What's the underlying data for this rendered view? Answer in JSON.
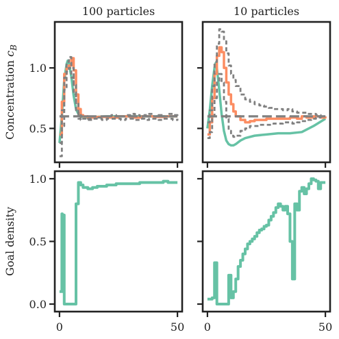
{
  "chart_data": [
    {
      "type": "line",
      "panel": "top-left",
      "title": "100 particles",
      "ylabel": "Concentration c_B",
      "xlim": [
        -2,
        52
      ],
      "ylim": [
        0.22,
        1.38
      ],
      "yticks": [
        0.5,
        1.0
      ],
      "ytick_labels": [
        "0.5",
        "1.0"
      ],
      "xticks": [
        0,
        50
      ],
      "xtick_labels": [],
      "series": [
        {
          "color": "#66c2a5",
          "style": "solid",
          "width": 3.5,
          "x": [
            0,
            1,
            2,
            3,
            3.5,
            4,
            5,
            6,
            7,
            8,
            9,
            10,
            12,
            15,
            20,
            30,
            40,
            50
          ],
          "y": [
            0.38,
            0.6,
            0.9,
            1.03,
            1.06,
            1.04,
            0.93,
            0.77,
            0.66,
            0.62,
            0.6,
            0.595,
            0.59,
            0.595,
            0.6,
            0.6,
            0.6,
            0.6
          ]
        },
        {
          "color": "#fc8d62",
          "style": "step",
          "width": 3.5,
          "x": [
            0,
            1,
            2,
            3,
            4,
            5,
            6,
            7,
            8,
            9,
            10,
            12,
            15,
            20,
            25,
            30,
            35,
            40,
            45,
            48,
            50
          ],
          "y": [
            0.45,
            0.72,
            0.95,
            1.0,
            1.02,
            1.08,
            0.98,
            0.78,
            0.66,
            0.61,
            0.6,
            0.59,
            0.595,
            0.59,
            0.6,
            0.59,
            0.6,
            0.595,
            0.6,
            0.6,
            0.6
          ]
        },
        {
          "color": "#808080",
          "style": "dashed-step",
          "width": 2.8,
          "x": [
            0,
            1,
            2,
            3,
            4,
            5,
            6,
            7,
            8,
            9,
            10,
            12,
            14,
            16,
            18,
            20,
            22,
            24,
            26,
            28,
            30,
            32,
            34,
            36,
            38,
            40,
            42,
            44,
            46,
            48,
            50
          ],
          "y": [
            0.38,
            0.65,
            0.92,
            1.05,
            1.09,
            1.0,
            0.86,
            0.72,
            0.63,
            0.59,
            0.6,
            0.58,
            0.6,
            0.59,
            0.6,
            0.6,
            0.61,
            0.6,
            0.6,
            0.61,
            0.62,
            0.61,
            0.6,
            0.61,
            0.62,
            0.6,
            0.61,
            0.6,
            0.62,
            0.61,
            0.6
          ]
        },
        {
          "color": "#808080",
          "style": "dashed-step",
          "width": 2.8,
          "x": [
            0,
            1,
            2,
            3,
            4,
            5,
            6,
            7,
            8,
            9,
            10,
            12,
            14,
            16,
            18,
            20,
            22,
            24,
            26,
            28,
            30,
            32,
            34,
            36,
            38,
            40,
            42,
            44,
            46,
            48,
            50
          ],
          "y": [
            0.27,
            0.52,
            0.82,
            0.97,
            1.0,
            0.92,
            0.78,
            0.65,
            0.58,
            0.57,
            0.58,
            0.57,
            0.58,
            0.58,
            0.57,
            0.58,
            0.58,
            0.58,
            0.57,
            0.58,
            0.58,
            0.57,
            0.58,
            0.57,
            0.58,
            0.58,
            0.57,
            0.58,
            0.58,
            0.57,
            0.58
          ]
        },
        {
          "color": "#808080",
          "style": "long-dashed",
          "width": 3.2,
          "x": [
            0,
            50
          ],
          "y": [
            0.6,
            0.6
          ]
        }
      ]
    },
    {
      "type": "line",
      "panel": "top-right",
      "title": "10 particles",
      "xlim": [
        -2,
        52
      ],
      "ylim": [
        0.22,
        1.38
      ],
      "yticks": [
        0.5,
        1.0
      ],
      "ytick_labels": [],
      "xticks": [
        0,
        50
      ],
      "xtick_labels": [],
      "series": [
        {
          "color": "#66c2a5",
          "style": "solid",
          "width": 3.5,
          "x": [
            0,
            1,
            2,
            3,
            3.5,
            4,
            5,
            6,
            7,
            8,
            9,
            10,
            11,
            12,
            14,
            16,
            20,
            25,
            30,
            35,
            40,
            45,
            50
          ],
          "y": [
            0.5,
            0.65,
            0.85,
            1.0,
            1.04,
            1.0,
            0.82,
            0.62,
            0.48,
            0.4,
            0.37,
            0.36,
            0.36,
            0.37,
            0.4,
            0.42,
            0.44,
            0.45,
            0.46,
            0.46,
            0.47,
            0.52,
            0.58
          ]
        },
        {
          "color": "#fc8d62",
          "style": "step",
          "width": 3.5,
          "x": [
            0,
            1,
            2,
            3,
            4,
            5,
            6,
            7,
            8,
            9,
            10,
            11,
            12,
            14,
            16,
            18,
            20,
            25,
            30,
            35,
            38,
            40,
            42,
            45,
            48,
            50
          ],
          "y": [
            0.45,
            0.55,
            0.75,
            0.95,
            1.1,
            1.17,
            1.13,
            1.0,
            0.88,
            0.78,
            0.7,
            0.64,
            0.6,
            0.57,
            0.55,
            0.56,
            0.57,
            0.58,
            0.58,
            0.59,
            0.58,
            0.6,
            0.59,
            0.6,
            0.59,
            0.6
          ]
        },
        {
          "color": "#808080",
          "style": "dashed-step",
          "width": 2.8,
          "x": [
            0,
            1,
            2,
            3,
            4,
            5,
            6,
            7,
            8,
            9,
            10,
            11,
            12,
            14,
            16,
            18,
            20,
            22,
            24,
            26,
            28,
            30,
            32,
            34,
            36,
            38,
            40,
            42,
            44,
            46,
            48,
            50
          ],
          "y": [
            0.55,
            0.65,
            0.85,
            1.05,
            1.2,
            1.32,
            1.3,
            1.22,
            1.12,
            1.02,
            0.95,
            0.9,
            0.85,
            0.78,
            0.74,
            0.72,
            0.7,
            0.69,
            0.68,
            0.67,
            0.66,
            0.66,
            0.65,
            0.66,
            0.64,
            0.63,
            0.63,
            0.62,
            0.62,
            0.61,
            0.6,
            0.6
          ]
        },
        {
          "color": "#808080",
          "style": "dashed-step",
          "width": 2.8,
          "x": [
            0,
            1,
            2,
            3,
            4,
            5,
            6,
            7,
            8,
            9,
            10,
            11,
            12,
            14,
            16,
            18,
            20,
            22,
            24,
            26,
            28,
            30,
            32,
            34,
            36,
            38,
            40,
            42,
            44,
            46,
            48,
            50
          ],
          "y": [
            0.42,
            0.47,
            0.6,
            0.75,
            0.88,
            0.95,
            0.88,
            0.72,
            0.58,
            0.48,
            0.44,
            0.43,
            0.44,
            0.48,
            0.5,
            0.52,
            0.52,
            0.53,
            0.53,
            0.53,
            0.54,
            0.54,
            0.55,
            0.55,
            0.54,
            0.55,
            0.56,
            0.57,
            0.58,
            0.59,
            0.6,
            0.6
          ]
        },
        {
          "color": "#808080",
          "style": "long-dashed",
          "width": 3.2,
          "x": [
            0,
            50
          ],
          "y": [
            0.6,
            0.6
          ]
        }
      ]
    },
    {
      "type": "line",
      "panel": "bottom-left",
      "ylabel": "Goal density",
      "xlim": [
        -2,
        52
      ],
      "ylim": [
        -0.06,
        1.06
      ],
      "yticks": [
        0.0,
        0.5,
        1.0
      ],
      "ytick_labels": [
        "0.0",
        "0.5",
        "1.0"
      ],
      "xticks": [
        0,
        50
      ],
      "xtick_labels": [
        "0",
        "50"
      ],
      "series": [
        {
          "color": "#66c2a5",
          "style": "step",
          "width": 4.0,
          "x": [
            0,
            1,
            1.2,
            1.4,
            1.6,
            1.8,
            2,
            3,
            4,
            5,
            6,
            7,
            8,
            9,
            10,
            12,
            14,
            16,
            18,
            20,
            22,
            24,
            26,
            28,
            30,
            32,
            34,
            36,
            38,
            40,
            42,
            44,
            46,
            48,
            50
          ],
          "y": [
            0.1,
            0.72,
            0.1,
            0.7,
            0.12,
            0.71,
            0.0,
            0.0,
            0.0,
            0.0,
            0.0,
            0.8,
            0.97,
            0.95,
            0.93,
            0.92,
            0.93,
            0.94,
            0.94,
            0.95,
            0.95,
            0.96,
            0.96,
            0.96,
            0.96,
            0.96,
            0.97,
            0.97,
            0.97,
            0.97,
            0.97,
            0.98,
            0.97,
            0.97,
            0.97
          ]
        }
      ]
    },
    {
      "type": "line",
      "panel": "bottom-right",
      "xlim": [
        -2,
        52
      ],
      "ylim": [
        -0.06,
        1.06
      ],
      "yticks": [
        0.0,
        0.5,
        1.0
      ],
      "ytick_labels": [],
      "xticks": [
        0,
        50
      ],
      "xtick_labels": [
        "0",
        "50"
      ],
      "series": [
        {
          "color": "#66c2a5",
          "style": "step",
          "width": 4.0,
          "x": [
            0,
            2,
            3,
            4,
            5,
            6,
            8,
            9,
            10,
            11,
            12,
            13,
            14,
            15,
            16,
            17,
            18,
            19,
            20,
            21,
            22,
            23,
            24,
            25,
            26,
            27,
            28,
            29,
            30,
            31,
            32,
            33,
            34,
            35,
            36,
            37,
            38,
            39,
            40,
            41,
            42,
            43,
            44,
            45,
            46,
            47,
            48,
            49,
            50
          ],
          "y": [
            0.04,
            0.05,
            0.33,
            0.0,
            0.0,
            0.0,
            0.0,
            0.23,
            0.05,
            0.1,
            0.2,
            0.3,
            0.35,
            0.4,
            0.44,
            0.48,
            0.5,
            0.52,
            0.54,
            0.57,
            0.59,
            0.6,
            0.62,
            0.63,
            0.67,
            0.7,
            0.73,
            0.77,
            0.8,
            0.78,
            0.75,
            0.78,
            0.72,
            0.5,
            0.2,
            0.8,
            0.75,
            0.9,
            0.93,
            0.88,
            0.92,
            0.96,
            1.0,
            0.99,
            0.98,
            0.92,
            0.97,
            0.97,
            0.97
          ]
        }
      ]
    }
  ]
}
